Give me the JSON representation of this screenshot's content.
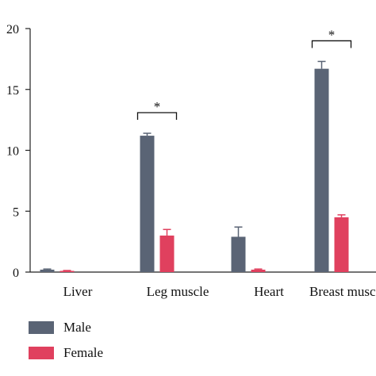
{
  "chart_data": {
    "type": "bar",
    "categories": [
      "Liver",
      "Leg muscle",
      "Heart",
      "Breast muscle"
    ],
    "category_labels": [
      "Liver",
      "Leg muscle",
      "Heart",
      "Breast musc"
    ],
    "series": [
      {
        "name": "Male",
        "color": "#5a6475",
        "values": [
          0.2,
          11.2,
          2.9,
          16.7
        ],
        "errors": [
          0.05,
          0.2,
          0.8,
          0.6
        ]
      },
      {
        "name": "Female",
        "color": "#e0405e",
        "values": [
          0.1,
          3.0,
          0.2,
          4.5
        ],
        "errors": [
          0.03,
          0.5,
          0.05,
          0.2
        ]
      }
    ],
    "ylim": [
      0,
      20
    ],
    "yticks": [
      "0",
      "5",
      "10",
      "15",
      "20"
    ],
    "significance": [
      {
        "category": "Leg muscle",
        "label": "*"
      },
      {
        "category": "Breast muscle",
        "label": "*"
      }
    ],
    "legend_position": "bottom-left"
  }
}
